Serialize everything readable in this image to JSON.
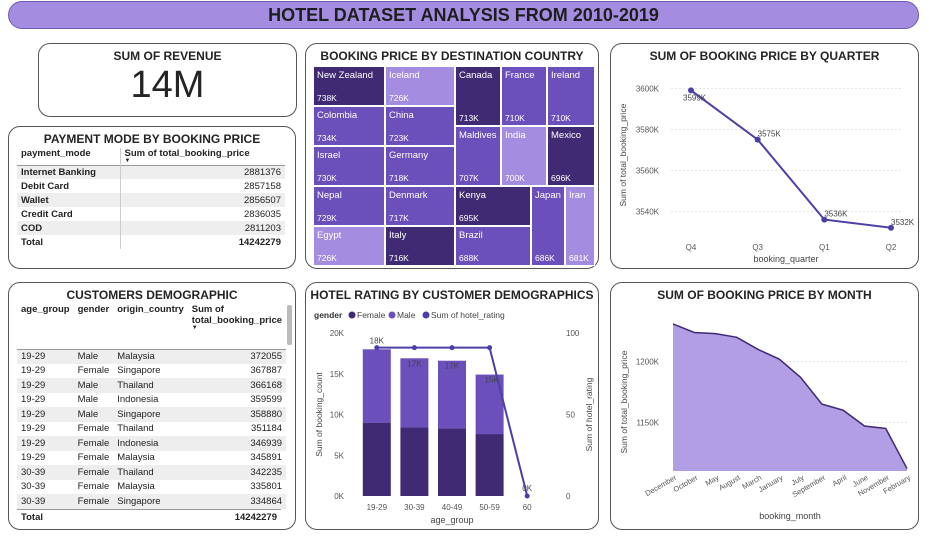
{
  "banner": {
    "title": "HOTEL DATASET ANALYSIS FROM 2010-2019"
  },
  "kpi": {
    "title": "SUM OF REVENUE",
    "value": "14M"
  },
  "payment": {
    "title": "PAYMENT MODE BY BOOKING PRICE",
    "col1": "payment_mode",
    "col2": "Sum of total_booking_price",
    "rows": [
      {
        "mode": "Internet Banking",
        "value": "2881376"
      },
      {
        "mode": "Debit Card",
        "value": "2857158"
      },
      {
        "mode": "Wallet",
        "value": "2856507"
      },
      {
        "mode": "Credit Card",
        "value": "2836035"
      },
      {
        "mode": "COD",
        "value": "2811203"
      }
    ],
    "total_label": "Total",
    "total_value": "14242279"
  },
  "demo": {
    "title": "CUSTOMERS DEMOGRAPHIC",
    "cols": [
      "age_group",
      "gender",
      "origin_country",
      "Sum of total_booking_price"
    ],
    "rows": [
      [
        "19-29",
        "Male",
        "Malaysia",
        "372055"
      ],
      [
        "19-29",
        "Female",
        "Singapore",
        "367887"
      ],
      [
        "19-29",
        "Male",
        "Thailand",
        "366168"
      ],
      [
        "19-29",
        "Male",
        "Indonesia",
        "359599"
      ],
      [
        "19-29",
        "Male",
        "Singapore",
        "358880"
      ],
      [
        "19-29",
        "Female",
        "Thailand",
        "351184"
      ],
      [
        "19-29",
        "Female",
        "Indonesia",
        "346939"
      ],
      [
        "19-29",
        "Female",
        "Malaysia",
        "345891"
      ],
      [
        "30-39",
        "Female",
        "Thailand",
        "342235"
      ],
      [
        "30-39",
        "Female",
        "Malaysia",
        "335801"
      ],
      [
        "30-39",
        "Female",
        "Singapore",
        "334864"
      ]
    ],
    "total_label": "Total",
    "total_value": "14242279"
  },
  "colors": {
    "accent": "#6b4fbb",
    "light": "#a48de0",
    "dark": "#3f2a73",
    "line": "#4b3fa8"
  },
  "chart_data": [
    {
      "type": "treemap",
      "title": "BOOKING PRICE BY DESTINATION COUNTRY",
      "items": [
        {
          "name": "New Zealand",
          "label": "738K",
          "value": 738
        },
        {
          "name": "Iceland",
          "label": "726K",
          "value": 726
        },
        {
          "name": "Colombia",
          "label": "734K",
          "value": 734
        },
        {
          "name": "China",
          "label": "723K",
          "value": 723
        },
        {
          "name": "Israel",
          "label": "730K",
          "value": 730
        },
        {
          "name": "Germany",
          "label": "718K",
          "value": 718
        },
        {
          "name": "Nepal",
          "label": "729K",
          "value": 729
        },
        {
          "name": "Denmark",
          "label": "717K",
          "value": 717
        },
        {
          "name": "Egypt",
          "label": "726K",
          "value": 726
        },
        {
          "name": "Italy",
          "label": "716K",
          "value": 716
        },
        {
          "name": "Canada",
          "label": "713K",
          "value": 713
        },
        {
          "name": "France",
          "label": "710K",
          "value": 710
        },
        {
          "name": "Ireland",
          "label": "710K",
          "value": 710
        },
        {
          "name": "Maldives",
          "label": "707K",
          "value": 707
        },
        {
          "name": "India",
          "label": "700K",
          "value": 700
        },
        {
          "name": "Mexico",
          "label": "696K",
          "value": 696
        },
        {
          "name": "Kenya",
          "label": "695K",
          "value": 695
        },
        {
          "name": "Japan",
          "label": "686K",
          "value": 686
        },
        {
          "name": "Iran",
          "label": "681K",
          "value": 681
        },
        {
          "name": "Brazil",
          "label": "688K",
          "value": 688
        }
      ]
    },
    {
      "type": "line",
      "title": "SUM OF BOOKING PRICE BY QUARTER",
      "xlabel": "booking_quarter",
      "ylabel": "Sum of total_booking_price",
      "categories": [
        "Q4",
        "Q3",
        "Q1",
        "Q2"
      ],
      "values": [
        3599,
        3575,
        3536,
        3532
      ],
      "data_labels": [
        "3599K",
        "3575K",
        "3536K",
        "3532K"
      ],
      "yticks": [
        "3540K",
        "3560K",
        "3580K",
        "3600K"
      ],
      "ytick_values": [
        3540,
        3560,
        3580,
        3600
      ],
      "ylim": [
        3528,
        3607
      ]
    },
    {
      "type": "bar",
      "title": "HOTEL RATING BY CUSTOMER DEMOGRAPHICS",
      "legend_title": "gender",
      "xlabel": "age_group",
      "ylabel": "Sum of booking_count",
      "y2label": "Sum of hotel_rating",
      "categories": [
        "19-29",
        "30-39",
        "40-49",
        "50-59",
        "60"
      ],
      "series": [
        {
          "name": "Female",
          "values": [
            9000,
            8400,
            8300,
            7600,
            0
          ]
        },
        {
          "name": "Male",
          "values": [
            9000,
            8500,
            8300,
            7300,
            0
          ]
        },
        {
          "name": "Sum of hotel_rating",
          "values": [
            91,
            91,
            91,
            91,
            0
          ]
        }
      ],
      "data_labels": [
        "18K",
        "17K",
        "17K",
        "15K",
        "0K"
      ],
      "yticks": [
        "0K",
        "5K",
        "10K",
        "15K",
        "20K"
      ],
      "ytick_values": [
        0,
        5000,
        10000,
        15000,
        20000
      ],
      "y2ticks": [
        "0",
        "50",
        "100"
      ],
      "y2tick_values": [
        0,
        50,
        100
      ],
      "ylim": [
        0,
        20000
      ],
      "y2lim": [
        0,
        100
      ]
    },
    {
      "type": "area",
      "title": "SUM OF BOOKING PRICE BY MONTH",
      "xlabel": "booking_month",
      "ylabel": "Sum of total_booking_price",
      "categories": [
        "December",
        "October",
        "May",
        "August",
        "March",
        "January",
        "July",
        "September",
        "April",
        "June",
        "November",
        "February"
      ],
      "values": [
        1231,
        1224,
        1223,
        1220,
        1210,
        1202,
        1187,
        1165,
        1160,
        1147,
        1145,
        1112
      ],
      "yticks": [
        "1150K",
        "1200K"
      ],
      "ytick_values": [
        1150,
        1200
      ],
      "ylim": [
        1110,
        1240
      ]
    }
  ]
}
